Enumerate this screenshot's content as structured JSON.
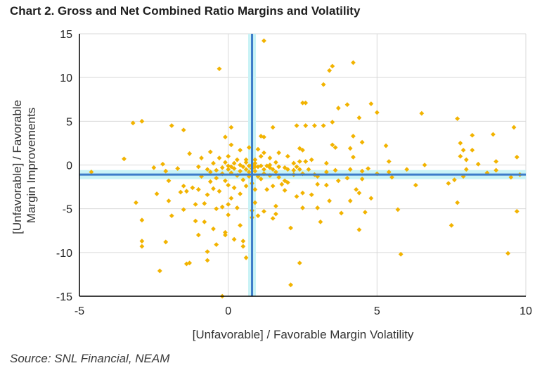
{
  "title": "Chart 2. Gross and Net Combined Ratio Margins and Volatility",
  "source": "Source: SNL Financial, NEAM",
  "colors": {
    "point": "#f2b300",
    "refline": "#3d7cc9",
    "refband": "#c9f3f6",
    "grid": "#d9d9d9",
    "axis": "#000000"
  },
  "chart_data": {
    "type": "scatter",
    "title": "Chart 2. Gross and Net Combined Ratio Margins and Volatility",
    "xlabel": "[Unfavorable] / Favorable Margin Volatility",
    "ylabel": [
      "[Unfavorable] / Favorable",
      "Margin Improvements"
    ],
    "xlim": [
      -5,
      10
    ],
    "ylim": [
      -15,
      15
    ],
    "xticks": [
      -5,
      0,
      5,
      10
    ],
    "yticks": [
      -15,
      -10,
      -5,
      0,
      5,
      10,
      15
    ],
    "grid": true,
    "reference_lines": {
      "x": 0.8,
      "y": -1.1
    },
    "marker": "diamond",
    "points": [
      [
        -4.6,
        -0.8
      ],
      [
        -3.5,
        0.7
      ],
      [
        -3.2,
        4.8
      ],
      [
        -3.1,
        -4.3
      ],
      [
        -2.9,
        5.0
      ],
      [
        -2.9,
        -6.3
      ],
      [
        -2.9,
        -8.7
      ],
      [
        -2.9,
        -9.3
      ],
      [
        -2.5,
        -0.3
      ],
      [
        -2.4,
        -3.3
      ],
      [
        -2.3,
        -12.1
      ],
      [
        -2.2,
        0.1
      ],
      [
        -2.1,
        -8.8
      ],
      [
        -2.1,
        -0.7
      ],
      [
        -2.0,
        -1.8
      ],
      [
        -2.0,
        -4.1
      ],
      [
        -1.9,
        4.5
      ],
      [
        -1.9,
        -5.8
      ],
      [
        -1.7,
        -0.4
      ],
      [
        -1.6,
        -3.1
      ],
      [
        -1.5,
        4.0
      ],
      [
        -1.5,
        -2.4
      ],
      [
        -1.5,
        -5.1
      ],
      [
        -1.4,
        -11.3
      ],
      [
        -1.4,
        -3.0
      ],
      [
        -1.3,
        -11.2
      ],
      [
        -1.3,
        1.3
      ],
      [
        -1.2,
        -2.6
      ],
      [
        -1.1,
        -4.5
      ],
      [
        -1.1,
        -6.4
      ],
      [
        -1.0,
        -0.2
      ],
      [
        -1.0,
        -2.8
      ],
      [
        -1.0,
        -8.0
      ],
      [
        -0.9,
        0.8
      ],
      [
        -0.9,
        -1.3
      ],
      [
        -0.8,
        -4.4
      ],
      [
        -0.8,
        -6.5
      ],
      [
        -0.7,
        -0.5
      ],
      [
        -0.7,
        -3.4
      ],
      [
        -0.7,
        -9.9
      ],
      [
        -0.7,
        -10.9
      ],
      [
        -0.6,
        1.5
      ],
      [
        -0.6,
        -0.8
      ],
      [
        -0.6,
        -1.9
      ],
      [
        -0.5,
        -2.7
      ],
      [
        -0.5,
        -7.3
      ],
      [
        -0.5,
        0.2
      ],
      [
        -0.4,
        -0.6
      ],
      [
        -0.4,
        -1.5
      ],
      [
        -0.4,
        -5.0
      ],
      [
        -0.4,
        -9.1
      ],
      [
        -0.3,
        11.0
      ],
      [
        -0.3,
        0.8
      ],
      [
        -0.3,
        -3.0
      ],
      [
        -0.2,
        -0.3
      ],
      [
        -0.2,
        -1.0
      ],
      [
        -0.2,
        -4.8
      ],
      [
        -0.2,
        -15.0
      ],
      [
        -0.1,
        0.3
      ],
      [
        -0.1,
        3.2
      ],
      [
        -0.1,
        -1.8
      ],
      [
        -0.1,
        -7.7
      ],
      [
        -0.1,
        -8.0
      ],
      [
        0.0,
        -0.1
      ],
      [
        0.0,
        -0.5
      ],
      [
        0.0,
        1.0
      ],
      [
        0.0,
        -2.3
      ],
      [
        0.0,
        -4.5
      ],
      [
        0.0,
        -5.7
      ],
      [
        0.1,
        -0.2
      ],
      [
        0.1,
        4.3
      ],
      [
        0.1,
        2.3
      ],
      [
        0.1,
        -0.9
      ],
      [
        0.1,
        -3.8
      ],
      [
        0.2,
        0.2
      ],
      [
        0.2,
        -0.4
      ],
      [
        0.2,
        -2.6
      ],
      [
        0.2,
        -8.5
      ],
      [
        0.3,
        0.6
      ],
      [
        0.3,
        -1.2
      ],
      [
        0.3,
        -4.9
      ],
      [
        0.4,
        0.0
      ],
      [
        0.4,
        1.7
      ],
      [
        0.4,
        -0.7
      ],
      [
        0.4,
        -3.3
      ],
      [
        0.4,
        -6.9
      ],
      [
        0.5,
        -0.2
      ],
      [
        0.5,
        -1.7
      ],
      [
        0.5,
        -8.7
      ],
      [
        0.5,
        -9.3
      ],
      [
        0.6,
        0.3
      ],
      [
        0.6,
        -0.5
      ],
      [
        0.6,
        -2.4
      ],
      [
        0.6,
        0.6
      ],
      [
        0.6,
        -10.6
      ],
      [
        0.7,
        -0.1
      ],
      [
        0.7,
        2.0
      ],
      [
        0.7,
        -0.8
      ],
      [
        0.7,
        -1.3
      ],
      [
        0.8,
        0.0
      ],
      [
        0.8,
        -0.4
      ],
      [
        0.8,
        -2.1
      ],
      [
        0.8,
        -5.2
      ],
      [
        0.8,
        -6.0
      ],
      [
        0.9,
        0.2
      ],
      [
        0.9,
        -0.2
      ],
      [
        0.9,
        0.6
      ],
      [
        0.9,
        -0.7
      ],
      [
        0.9,
        -2.8
      ],
      [
        0.9,
        -4.3
      ],
      [
        1.0,
        -0.2
      ],
      [
        1.0,
        1.8
      ],
      [
        1.0,
        -1.3
      ],
      [
        1.0,
        -5.8
      ],
      [
        1.1,
        1.0
      ],
      [
        1.1,
        3.3
      ],
      [
        1.1,
        -0.1
      ],
      [
        1.1,
        -1.6
      ],
      [
        1.2,
        14.2
      ],
      [
        1.2,
        3.2
      ],
      [
        1.2,
        1.4
      ],
      [
        1.2,
        -0.5
      ],
      [
        1.2,
        -1.0
      ],
      [
        1.2,
        -5.3
      ],
      [
        1.3,
        -2.8
      ],
      [
        1.3,
        -0.1
      ],
      [
        1.4,
        0.0
      ],
      [
        1.4,
        0.8
      ],
      [
        1.4,
        -0.3
      ],
      [
        1.4,
        -1.2
      ],
      [
        1.5,
        4.3
      ],
      [
        1.5,
        -0.5
      ],
      [
        1.5,
        -2.4
      ],
      [
        1.5,
        -6.1
      ],
      [
        1.6,
        0.3
      ],
      [
        1.6,
        -0.8
      ],
      [
        1.6,
        -4.7
      ],
      [
        1.6,
        -5.6
      ],
      [
        1.7,
        1.4
      ],
      [
        1.7,
        -0.2
      ],
      [
        1.7,
        -1.4
      ],
      [
        1.8,
        -2.2
      ],
      [
        1.9,
        -0.3
      ],
      [
        1.9,
        -1.8
      ],
      [
        1.9,
        -2.9
      ],
      [
        2.0,
        1.0
      ],
      [
        2.0,
        -0.5
      ],
      [
        2.0,
        -2.0
      ],
      [
        2.1,
        -7.2
      ],
      [
        2.1,
        -13.7
      ],
      [
        2.2,
        0.2
      ],
      [
        2.2,
        -0.6
      ],
      [
        2.2,
        -1.1
      ],
      [
        2.3,
        -3.6
      ],
      [
        2.3,
        -0.2
      ],
      [
        2.3,
        4.5
      ],
      [
        2.4,
        1.9
      ],
      [
        2.4,
        0.4
      ],
      [
        2.4,
        -0.5
      ],
      [
        2.4,
        -11.2
      ],
      [
        2.5,
        7.1
      ],
      [
        2.5,
        1.7
      ],
      [
        2.5,
        -1.0
      ],
      [
        2.5,
        -3.2
      ],
      [
        2.5,
        -4.9
      ],
      [
        2.6,
        7.1
      ],
      [
        2.6,
        4.5
      ],
      [
        2.6,
        0.4
      ],
      [
        2.7,
        -0.5
      ],
      [
        2.8,
        0.6
      ],
      [
        2.8,
        -3.4
      ],
      [
        2.9,
        4.5
      ],
      [
        2.9,
        -1.1
      ],
      [
        3.0,
        -1.3
      ],
      [
        3.0,
        -2.2
      ],
      [
        3.0,
        -4.9
      ],
      [
        3.1,
        -6.5
      ],
      [
        3.2,
        9.2
      ],
      [
        3.2,
        4.5
      ],
      [
        3.3,
        0.2
      ],
      [
        3.3,
        -0.8
      ],
      [
        3.3,
        -2.3
      ],
      [
        3.4,
        10.8
      ],
      [
        3.4,
        -4.1
      ],
      [
        3.5,
        11.3
      ],
      [
        3.5,
        4.9
      ],
      [
        3.5,
        2.3
      ],
      [
        3.6,
        2.0
      ],
      [
        3.6,
        -0.6
      ],
      [
        3.7,
        -1.8
      ],
      [
        3.7,
        6.5
      ],
      [
        3.8,
        -5.5
      ],
      [
        4.0,
        6.9
      ],
      [
        4.0,
        -1.5
      ],
      [
        4.1,
        -0.5
      ],
      [
        4.1,
        1.9
      ],
      [
        4.1,
        -4.1
      ],
      [
        4.2,
        11.7
      ],
      [
        4.2,
        3.3
      ],
      [
        4.2,
        0.9
      ],
      [
        4.3,
        -2.8
      ],
      [
        4.4,
        5.4
      ],
      [
        4.4,
        -3.2
      ],
      [
        4.4,
        -7.4
      ],
      [
        4.5,
        2.6
      ],
      [
        4.5,
        -0.7
      ],
      [
        4.5,
        -1.6
      ],
      [
        4.6,
        -5.4
      ],
      [
        4.7,
        -0.4
      ],
      [
        4.8,
        7.0
      ],
      [
        4.8,
        -3.8
      ],
      [
        5.0,
        6.0
      ],
      [
        5.0,
        -1.0
      ],
      [
        5.3,
        2.2
      ],
      [
        5.4,
        0.4
      ],
      [
        5.4,
        -0.8
      ],
      [
        5.5,
        -1.4
      ],
      [
        5.7,
        -5.1
      ],
      [
        5.8,
        -10.2
      ],
      [
        6.0,
        -0.5
      ],
      [
        6.3,
        -2.3
      ],
      [
        6.5,
        5.9
      ],
      [
        6.6,
        0.0
      ],
      [
        7.4,
        -2.1
      ],
      [
        7.5,
        -6.9
      ],
      [
        7.6,
        -1.7
      ],
      [
        7.7,
        5.3
      ],
      [
        7.7,
        -4.3
      ],
      [
        7.8,
        1.0
      ],
      [
        7.8,
        2.5
      ],
      [
        7.9,
        1.7
      ],
      [
        7.9,
        -1.3
      ],
      [
        8.0,
        -0.5
      ],
      [
        8.0,
        0.6
      ],
      [
        8.2,
        3.4
      ],
      [
        8.2,
        1.7
      ],
      [
        8.4,
        0.1
      ],
      [
        8.7,
        -0.9
      ],
      [
        8.9,
        3.5
      ],
      [
        9.0,
        0.4
      ],
      [
        9.0,
        -0.6
      ],
      [
        9.4,
        -10.1
      ],
      [
        9.5,
        -1.4
      ],
      [
        9.6,
        4.3
      ],
      [
        9.7,
        0.9
      ],
      [
        9.7,
        -5.3
      ],
      [
        9.8,
        -1.1
      ]
    ]
  }
}
